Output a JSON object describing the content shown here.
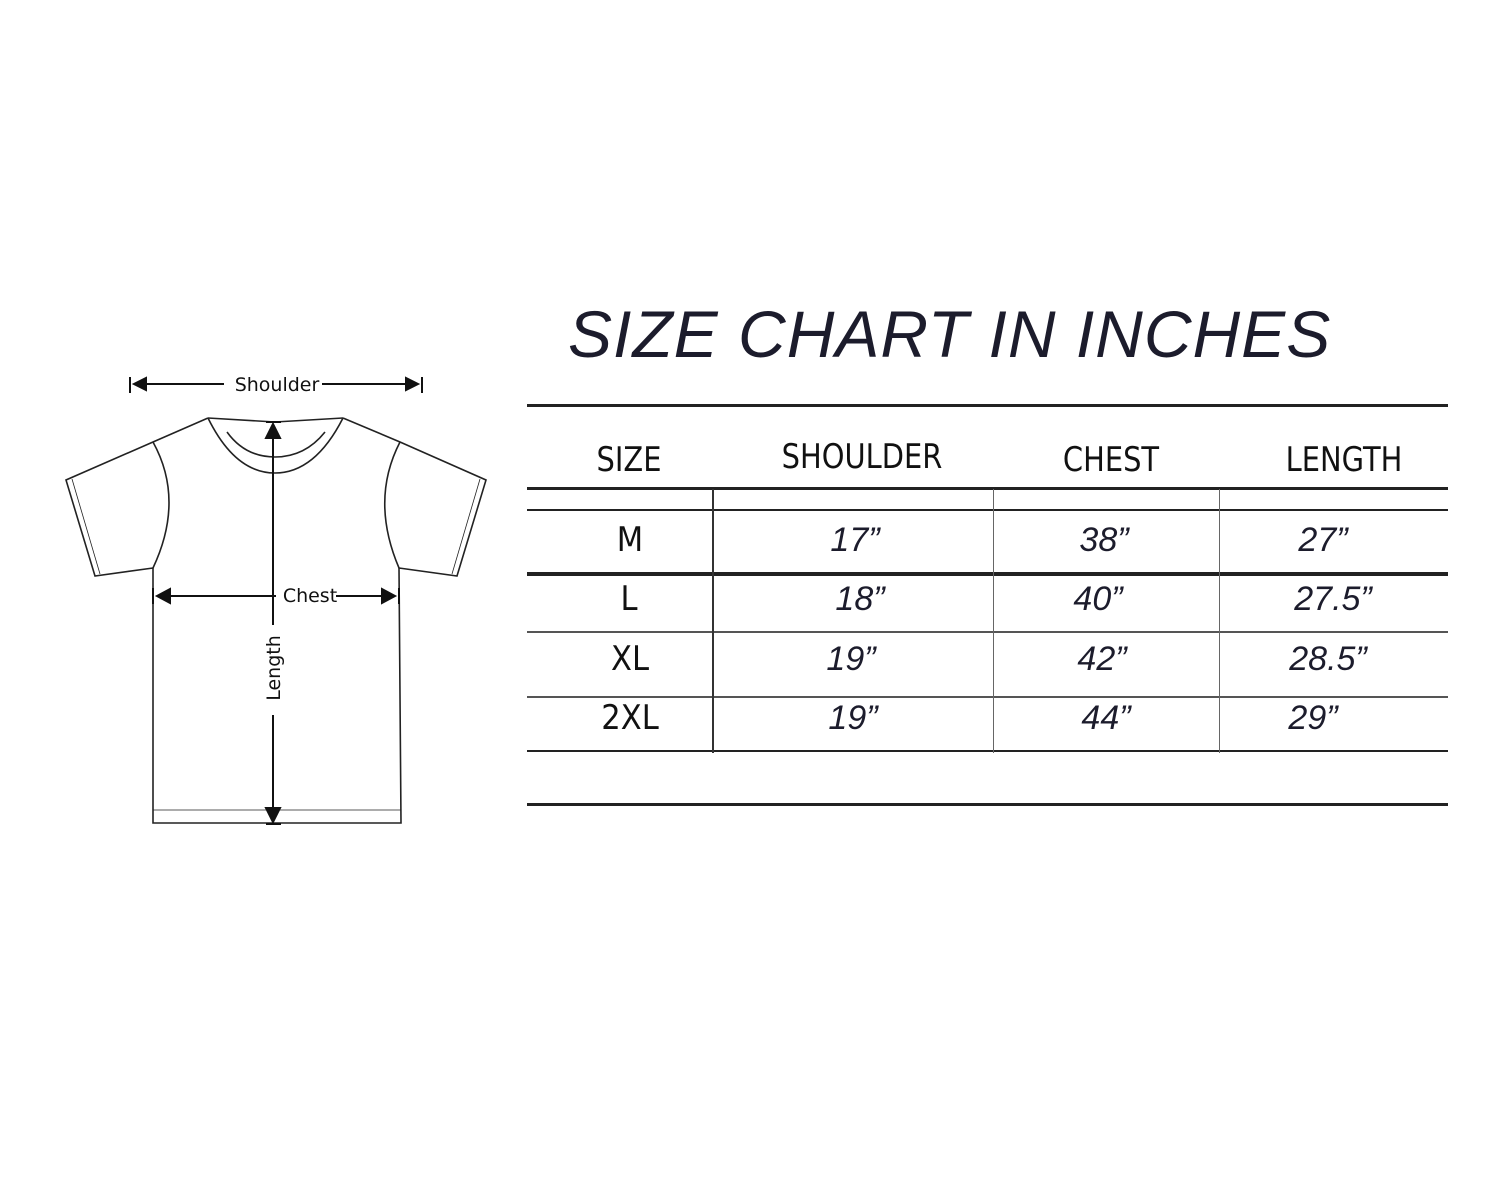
{
  "title": "SIZE CHART IN INCHES",
  "diagram": {
    "labels": {
      "shoulder": "Shoulder",
      "chest": "Chest",
      "length": "Length"
    }
  },
  "table": {
    "headers": [
      "SIZE",
      "SHOULDER",
      "CHEST",
      "LENGTH"
    ],
    "rows": [
      {
        "size": "M",
        "shoulder": "17”",
        "chest": "38”",
        "length": "27”"
      },
      {
        "size": "L",
        "shoulder": "18”",
        "chest": "40”",
        "length": "27.5”"
      },
      {
        "size": "XL",
        "shoulder": "19”",
        "chest": "42”",
        "length": "28.5”"
      },
      {
        "size": "2XL",
        "shoulder": "19”",
        "chest": "44”",
        "length": "29”"
      }
    ]
  },
  "colors": {
    "title": "#1c1c2c",
    "lines": "#222222"
  }
}
